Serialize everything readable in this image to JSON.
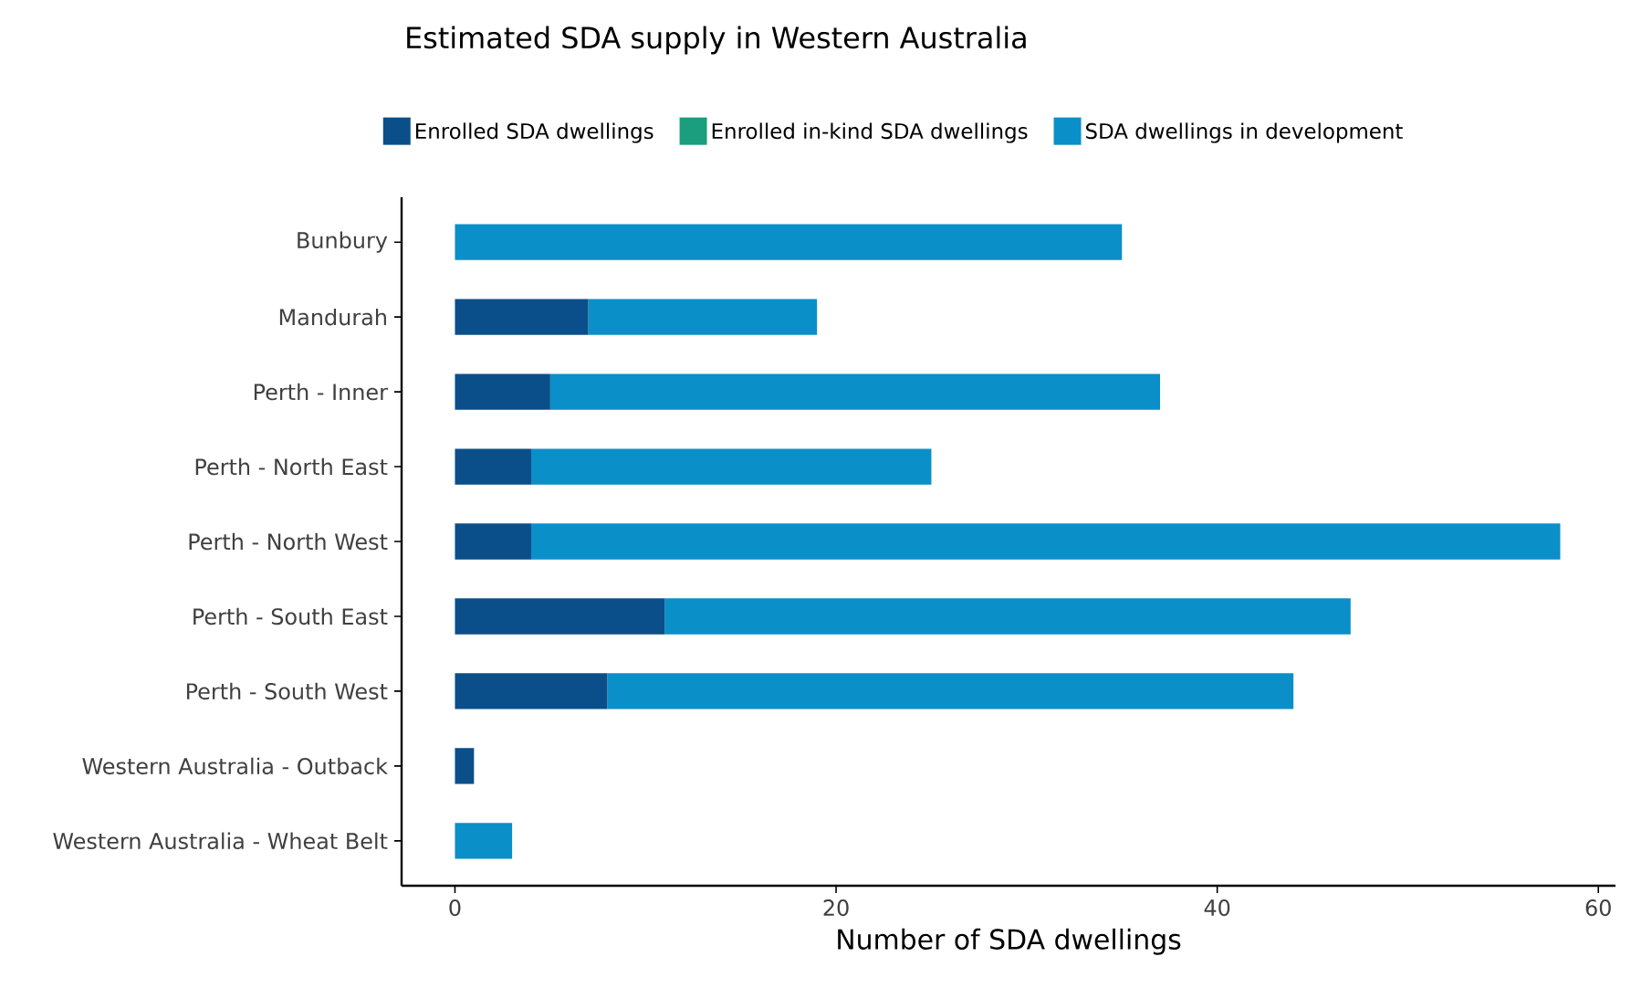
{
  "chart_data": {
    "type": "bar",
    "orientation": "horizontal",
    "stacked": true,
    "title": "Estimated SDA supply in Western Australia",
    "xlabel": "Number of SDA dwellings",
    "categories": [
      "Bunbury",
      "Mandurah",
      "Perth - Inner",
      "Perth - North East",
      "Perth - North West",
      "Perth - South East",
      "Perth - South West",
      "Western Australia - Outback",
      "Western Australia - Wheat Belt"
    ],
    "series": [
      {
        "name": "Enrolled SDA dwellings",
        "color": "#0b4f8a",
        "values": [
          0,
          7,
          5,
          4,
          4,
          11,
          8,
          1,
          0
        ]
      },
      {
        "name": "Enrolled in-kind SDA dwellings",
        "color": "#1a9e7e",
        "values": [
          0,
          0,
          0,
          0,
          0,
          0,
          0,
          0,
          0
        ]
      },
      {
        "name": "SDA dwellings in development",
        "color": "#0b8fc8",
        "values": [
          35,
          12,
          32,
          21,
          54,
          36,
          36,
          0,
          3
        ]
      }
    ],
    "xlim": [
      -2.8,
      60.9
    ],
    "xticks": [
      0,
      20,
      40,
      60
    ],
    "legend": "top"
  }
}
